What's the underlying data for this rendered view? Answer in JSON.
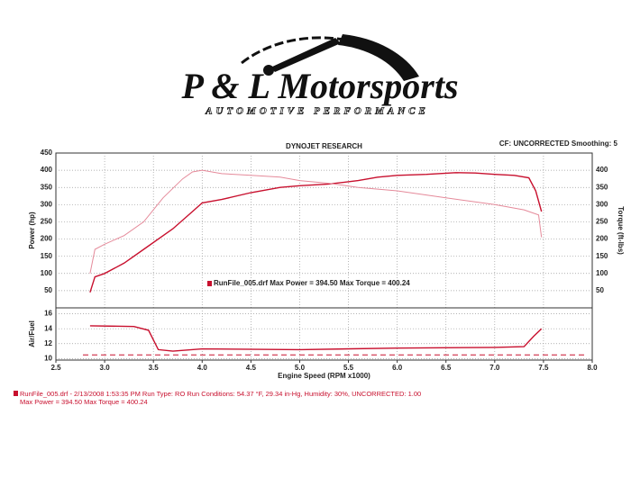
{
  "header": {
    "logo": "P & L Motorsports",
    "tagline": "AUTOMOTIVE PERFORMANCE"
  },
  "chart_data": [
    {
      "type": "line",
      "title": "DYNOJET RESEARCH",
      "subtitle": "CF: UNCORRECTED  Smoothing: 5",
      "ylabel": "Power (hp)",
      "y2label": "Torque (ft-lbs)",
      "annotation": "RunFile_005.drf Max Power = 394.50    Max Torque = 400.24",
      "xlim": [
        2.5,
        8.0
      ],
      "ylim": [
        0,
        450
      ],
      "yticks": [
        50,
        100,
        150,
        200,
        250,
        300,
        350,
        400,
        450
      ],
      "y2lim": [
        0,
        450
      ],
      "y2ticks": [
        50,
        100,
        150,
        200,
        250,
        300,
        350,
        400
      ],
      "grid": true,
      "series": [
        {
          "color": "#c8102e",
          "x": [
            2.85,
            2.9,
            3.0,
            3.2,
            3.4,
            3.7,
            3.9,
            4.0,
            4.2,
            4.5,
            4.8,
            5.0,
            5.3,
            5.6,
            5.8,
            6.0,
            6.3,
            6.6,
            6.8,
            7.0,
            7.2,
            7.35,
            7.42,
            7.48
          ],
          "values": [
            45,
            90,
            100,
            130,
            170,
            230,
            280,
            305,
            315,
            335,
            350,
            355,
            360,
            370,
            380,
            385,
            388,
            393,
            392,
            388,
            385,
            378,
            340,
            280
          ]
        },
        {
          "color": "#e58a9a",
          "axis": "y2",
          "x": [
            2.85,
            2.9,
            3.0,
            3.2,
            3.4,
            3.6,
            3.8,
            3.9,
            4.0,
            4.2,
            4.5,
            4.8,
            5.0,
            5.3,
            5.6,
            6.0,
            6.5,
            7.0,
            7.3,
            7.45,
            7.48
          ],
          "values": [
            100,
            170,
            185,
            210,
            250,
            320,
            375,
            395,
            400,
            390,
            385,
            380,
            370,
            362,
            350,
            340,
            320,
            300,
            285,
            270,
            205
          ]
        }
      ]
    },
    {
      "type": "line",
      "ylabel": "Air/Fuel",
      "xlabel": "Engine Speed (RPM x1000)",
      "xlim": [
        2.5,
        8.0
      ],
      "ylim": [
        9.8,
        16.8
      ],
      "yticks": [
        10,
        12,
        14,
        16
      ],
      "grid": true,
      "hline": 10.5,
      "xticks": [
        2.5,
        {
          "value": 3,
          "label": "3.0"
        },
        3.5,
        {
          "value": 4,
          "label": "4.0"
        },
        4.5,
        {
          "value": 5,
          "label": "5.0"
        },
        5.5,
        {
          "value": 6,
          "label": "6.0"
        },
        6.5,
        {
          "value": 7,
          "label": "7.0"
        },
        7.5,
        {
          "value": 8,
          "label": "8.0"
        }
      ],
      "series": [
        {
          "color": "#c8102e",
          "x": [
            2.85,
            3.3,
            3.45,
            3.55,
            3.7,
            4.0,
            5.0,
            6.0,
            7.0,
            7.3,
            7.4,
            7.48
          ],
          "values": [
            14.4,
            14.3,
            13.8,
            11.2,
            11.0,
            11.3,
            11.2,
            11.4,
            11.5,
            11.6,
            13.0,
            14.0
          ]
        }
      ]
    }
  ],
  "footer": {
    "line1": "RunFile_005.drf - 2/13/2008 1:53:35 PM  Run Type: RO  Run Conditions: 54.37 °F, 29.34 in-Hg,  Humidity: 30%, UNCORRECTED: 1.00",
    "line2": "Max Power = 394.50  Max Torque = 400.24"
  }
}
